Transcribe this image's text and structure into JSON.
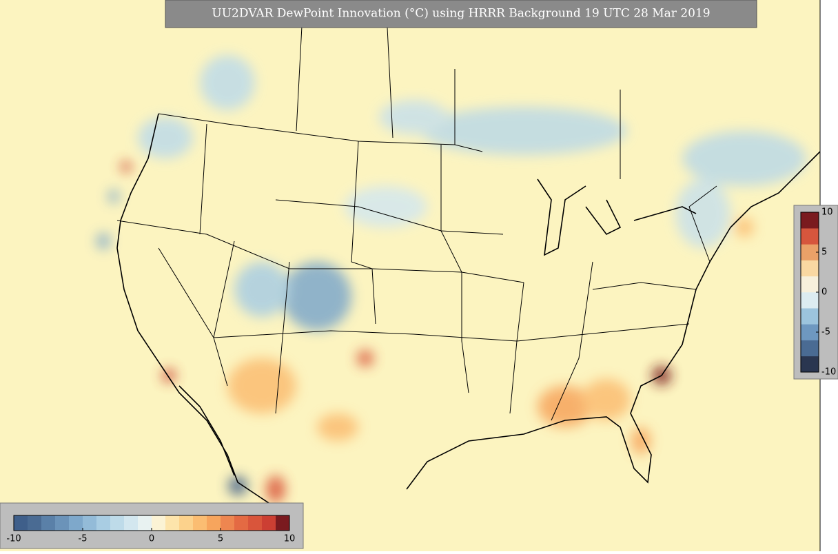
{
  "title": "UU2DVAR DewPoint Innovation (°C) using HRRR Background 19 UTC 28 Mar 2019",
  "colorbars": [
    {
      "orientation": "vertical",
      "lim": [
        -10,
        10
      ],
      "ticks": [
        -10,
        -5,
        0,
        5,
        10
      ],
      "colors": [
        "#2a3650",
        "#4a6b93",
        "#6e98c0",
        "#9cc4dd",
        "#dcecf1",
        "#f7f0dc",
        "#f9d8a2",
        "#eaa168",
        "#d6563d",
        "#7a1a1f"
      ]
    },
    {
      "orientation": "horizontal",
      "lim": [
        -10,
        10
      ],
      "ticks": [
        -10,
        -5,
        0,
        5,
        10
      ],
      "colors": [
        "#3f5f8a",
        "#4a6b93",
        "#5a80a8",
        "#6b93b9",
        "#7ea8cb",
        "#93bbd8",
        "#a9cde3",
        "#bedbe9",
        "#d3e7ef",
        "#e8f2f1",
        "#fbf3d5",
        "#fde4ab",
        "#fcd28c",
        "#fbbd72",
        "#f7a55d",
        "#ee8650",
        "#e46a43",
        "#d9553b",
        "#cc3f33",
        "#7a1a1f"
      ]
    }
  ]
}
